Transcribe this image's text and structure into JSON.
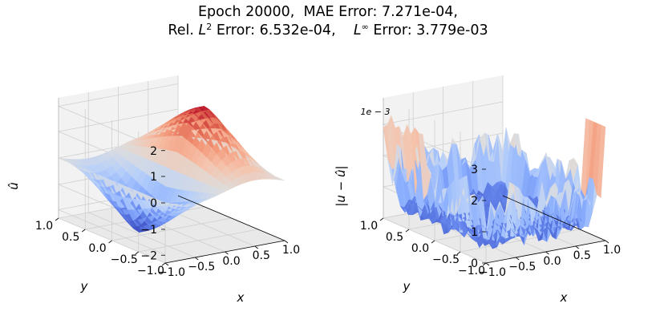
{
  "title": {
    "line1": "Epoch 20000,  MAE Error: 7.271e-04,",
    "line2_a": "Rel. ",
    "line2_L": "L",
    "line2_sup2": "2",
    "line2_b": " Error: 6.532e-04,    ",
    "line2_Linf": "L",
    "line2_supinf": "∞",
    "line2_c": " Error: 3.779e-03"
  },
  "chart_data": [
    {
      "type": "surface3d",
      "name_on_chart": "",
      "xlabel": "x",
      "ylabel": "y",
      "zlabel": "û",
      "xlim": [
        -1.0,
        1.0
      ],
      "ylim": [
        -1.0,
        1.0
      ],
      "zlim": [
        -2.3,
        2.3
      ],
      "xticks": [
        "−1.0",
        "−0.5",
        "0.0",
        "0.5",
        "1.0"
      ],
      "yticks": [
        "−1.0",
        "−0.5",
        "0.0",
        "0.5",
        "1.0"
      ],
      "zticks": [
        "−2",
        "−1",
        "0",
        "1",
        "2"
      ],
      "zmax_approx": 2.2,
      "zmin_approx": -2.2,
      "colormap": "coolwarm",
      "grid": true
    },
    {
      "type": "surface3d",
      "xlabel": "x",
      "ylabel": "y",
      "zlabel": "|u − û|",
      "zscale_label": "1e − 3",
      "xlim": [
        -1.0,
        1.0
      ],
      "ylim": [
        -1.0,
        1.0
      ],
      "zlim": [
        0,
        3.8
      ],
      "xticks": [
        "−1.0",
        "−0.5",
        "0.0",
        "0.5",
        "1.0"
      ],
      "yticks": [
        "−1.0",
        "−0.5",
        "0.0",
        "0.5",
        "1.0"
      ],
      "zticks": [
        "0",
        "1",
        "2",
        "3"
      ],
      "zmax_approx": 3.779,
      "colormap": "coolwarm",
      "grid": true
    }
  ],
  "colors": {
    "pane": "#f2f2f2",
    "pane_side": "#e9e9e9",
    "grid": "#cfcfcf",
    "cold": "#3b4cc0",
    "mid": "#dddddd",
    "warm": "#b40426"
  }
}
